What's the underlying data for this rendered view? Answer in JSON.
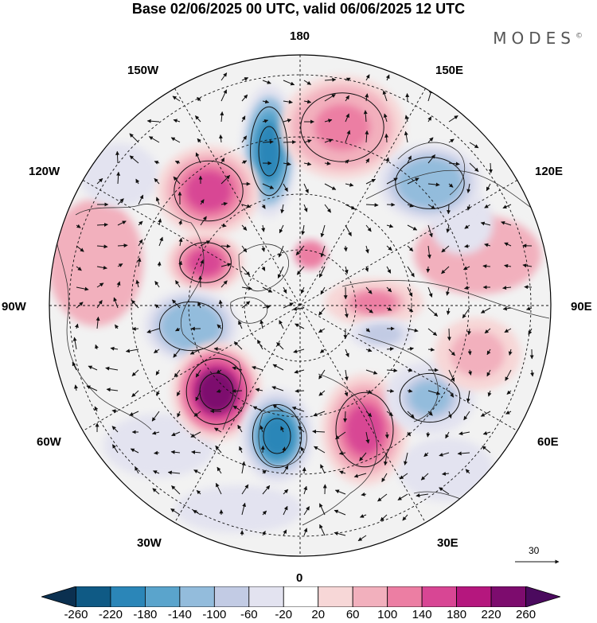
{
  "title": "Base 02/06/2025 00 UTC, valid 06/06/2025 12 UTC",
  "brand": "MODES",
  "brand_mark": "©",
  "longitude_labels": {
    "top": "180",
    "bottom": "0",
    "left": "90W",
    "right": "90E",
    "upper_left_1": "150W",
    "upper_left_2": "120W",
    "upper_right_1": "150E",
    "upper_right_2": "120E",
    "lower_left_1": "60W",
    "lower_left_2": "30W",
    "lower_right_1": "60E",
    "lower_right_2": "30E"
  },
  "reference_vector": {
    "label": "30"
  },
  "colorbar": {
    "labels": [
      "-260",
      "-220",
      "-180",
      "-140",
      "-100",
      "-60",
      "-20",
      "20",
      "60",
      "100",
      "140",
      "180",
      "220",
      "260"
    ],
    "colors": [
      "#0b3050",
      "#0f5a85",
      "#2b86b8",
      "#5aa4cc",
      "#93bcdc",
      "#c2cbe4",
      "#e3e3f0",
      "#ffffff",
      "#f7d7d7",
      "#f2b0bd",
      "#ec7ea3",
      "#d84694",
      "#b5177e",
      "#7d0c6e",
      "#4b0a5e"
    ]
  },
  "anomaly_centers": [
    {
      "name": "blue-180-north",
      "value": -220
    },
    {
      "name": "pink-150w",
      "value": 160
    },
    {
      "name": "pink-160e",
      "value": 120
    },
    {
      "name": "blue-120e",
      "value": -140
    },
    {
      "name": "pink-110w",
      "value": 140
    },
    {
      "name": "blue-90w",
      "value": -140
    },
    {
      "name": "pink-60w",
      "value": 220
    },
    {
      "name": "blue-20w",
      "value": -200
    },
    {
      "name": "pink-40e",
      "value": 140
    },
    {
      "name": "blue-60e",
      "value": -120
    },
    {
      "name": "pink-90e",
      "value": 100
    },
    {
      "name": "pink-105e",
      "value": 80
    },
    {
      "name": "blue-90e",
      "value": -100
    }
  ]
}
